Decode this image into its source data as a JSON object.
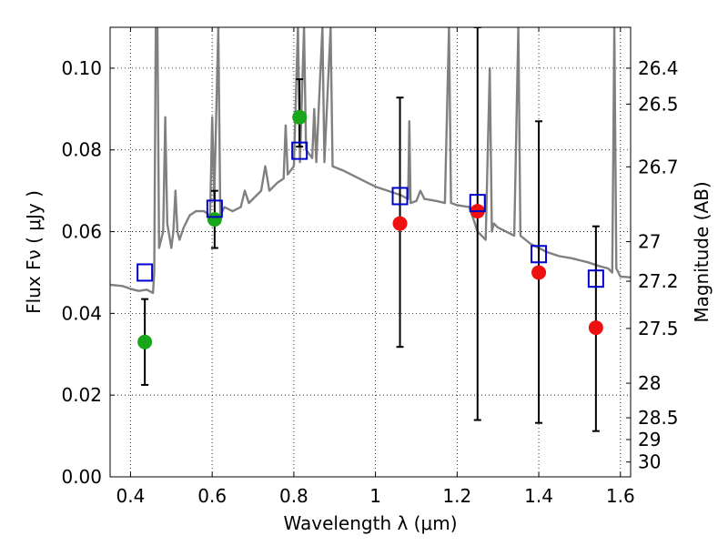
{
  "chart_data": {
    "type": "scatter",
    "title": "",
    "xlabel": "Wavelength  λ (μm)",
    "ylabel": "Flux  Fν  ( μJy )",
    "ylabel_right": "Magnitude (AB)",
    "xlim": [
      0.35,
      1.625
    ],
    "ylim": [
      0.0,
      0.11
    ],
    "grid": true,
    "x_ticks": [
      {
        "value": 0.4,
        "label": "0.4"
      },
      {
        "value": 0.6,
        "label": "0.6"
      },
      {
        "value": 0.8,
        "label": "0.8"
      },
      {
        "value": 1.0,
        "label": "1"
      },
      {
        "value": 1.2,
        "label": "1.2"
      },
      {
        "value": 1.4,
        "label": "1.4"
      },
      {
        "value": 1.6,
        "label": "1.6"
      }
    ],
    "y_ticks": [
      {
        "value": 0.0,
        "label": "0.00"
      },
      {
        "value": 0.02,
        "label": "0.02"
      },
      {
        "value": 0.04,
        "label": "0.04"
      },
      {
        "value": 0.06,
        "label": "0.06"
      },
      {
        "value": 0.08,
        "label": "0.08"
      },
      {
        "value": 0.1,
        "label": "0.10"
      }
    ],
    "mag_ticks": [
      {
        "value": 26.4,
        "label": "26.4"
      },
      {
        "value": 26.5,
        "label": "26.5"
      },
      {
        "value": 26.7,
        "label": "26.7"
      },
      {
        "value": 27.0,
        "label": "27"
      },
      {
        "value": 27.2,
        "label": "27.2"
      },
      {
        "value": 27.5,
        "label": "27.5"
      },
      {
        "value": 28.0,
        "label": "28"
      },
      {
        "value": 28.5,
        "label": "28.5"
      },
      {
        "value": 29.0,
        "label": "29"
      },
      {
        "value": 30.0,
        "label": "30"
      }
    ],
    "colors": {
      "model": "#808080",
      "measured_green": "#1aa61a",
      "measured_red": "#ee1111",
      "model_box": "#0000cc",
      "errorbar": "#000000"
    },
    "observed": [
      {
        "x": 0.435,
        "y": 0.033,
        "err_low": 0.0225,
        "err_high": 0.0435,
        "band": "green"
      },
      {
        "x": 0.606,
        "y": 0.063,
        "err_low": 0.056,
        "err_high": 0.07,
        "band": "green"
      },
      {
        "x": 0.814,
        "y": 0.088,
        "err_low": 0.0808,
        "err_high": 0.0973,
        "band": "green"
      },
      {
        "x": 1.06,
        "y": 0.062,
        "err_low": 0.0318,
        "err_high": 0.0928,
        "band": "red"
      },
      {
        "x": 1.25,
        "y": 0.065,
        "err_low": 0.0139,
        "err_high": 0.11,
        "band": "red"
      },
      {
        "x": 1.4,
        "y": 0.05,
        "err_low": 0.0132,
        "err_high": 0.087,
        "band": "red"
      },
      {
        "x": 1.54,
        "y": 0.0365,
        "err_low": 0.0112,
        "err_high": 0.0613,
        "band": "red"
      }
    ],
    "model_photometry": [
      {
        "x": 0.435,
        "y": 0.05
      },
      {
        "x": 0.606,
        "y": 0.0656
      },
      {
        "x": 0.814,
        "y": 0.0798
      },
      {
        "x": 1.06,
        "y": 0.0687
      },
      {
        "x": 1.25,
        "y": 0.067
      },
      {
        "x": 1.4,
        "y": 0.0545
      },
      {
        "x": 1.54,
        "y": 0.0485
      }
    ],
    "model_spectrum": [
      [
        0.35,
        0.047
      ],
      [
        0.38,
        0.0467
      ],
      [
        0.4,
        0.046
      ],
      [
        0.42,
        0.0455
      ],
      [
        0.44,
        0.0458
      ],
      [
        0.455,
        0.045
      ],
      [
        0.458,
        0.05
      ],
      [
        0.462,
        0.11
      ],
      [
        0.466,
        0.11
      ],
      [
        0.47,
        0.056
      ],
      [
        0.48,
        0.06
      ],
      [
        0.485,
        0.088
      ],
      [
        0.49,
        0.062
      ],
      [
        0.5,
        0.056
      ],
      [
        0.505,
        0.06
      ],
      [
        0.51,
        0.07
      ],
      [
        0.515,
        0.06
      ],
      [
        0.52,
        0.058
      ],
      [
        0.53,
        0.061
      ],
      [
        0.545,
        0.064
      ],
      [
        0.56,
        0.065
      ],
      [
        0.58,
        0.065
      ],
      [
        0.595,
        0.064
      ],
      [
        0.6,
        0.088
      ],
      [
        0.605,
        0.068
      ],
      [
        0.615,
        0.11
      ],
      [
        0.62,
        0.064
      ],
      [
        0.63,
        0.066
      ],
      [
        0.65,
        0.065
      ],
      [
        0.67,
        0.066
      ],
      [
        0.68,
        0.07
      ],
      [
        0.69,
        0.067
      ],
      [
        0.7,
        0.068
      ],
      [
        0.72,
        0.07
      ],
      [
        0.73,
        0.076
      ],
      [
        0.74,
        0.07
      ],
      [
        0.76,
        0.072
      ],
      [
        0.775,
        0.073
      ],
      [
        0.78,
        0.086
      ],
      [
        0.785,
        0.074
      ],
      [
        0.8,
        0.076
      ],
      [
        0.81,
        0.11
      ],
      [
        0.815,
        0.077
      ],
      [
        0.825,
        0.11
      ],
      [
        0.83,
        0.08
      ],
      [
        0.845,
        0.078
      ],
      [
        0.85,
        0.09
      ],
      [
        0.855,
        0.077
      ],
      [
        0.87,
        0.11
      ],
      [
        0.875,
        0.077
      ],
      [
        0.89,
        0.11
      ],
      [
        0.895,
        0.076
      ],
      [
        0.92,
        0.075
      ],
      [
        0.95,
        0.0735
      ],
      [
        0.98,
        0.072
      ],
      [
        1.0,
        0.071
      ],
      [
        1.03,
        0.07
      ],
      [
        1.06,
        0.069
      ],
      [
        1.08,
        0.068
      ],
      [
        1.083,
        0.087
      ],
      [
        1.086,
        0.067
      ],
      [
        1.1,
        0.0675
      ],
      [
        1.11,
        0.07
      ],
      [
        1.12,
        0.068
      ],
      [
        1.15,
        0.0675
      ],
      [
        1.17,
        0.067
      ],
      [
        1.18,
        0.11
      ],
      [
        1.185,
        0.067
      ],
      [
        1.2,
        0.0665
      ],
      [
        1.23,
        0.066
      ],
      [
        1.25,
        0.06
      ],
      [
        1.27,
        0.058
      ],
      [
        1.28,
        0.1
      ],
      [
        1.285,
        0.06
      ],
      [
        1.29,
        0.062
      ],
      [
        1.3,
        0.061
      ],
      [
        1.32,
        0.06
      ],
      [
        1.34,
        0.059
      ],
      [
        1.35,
        0.11
      ],
      [
        1.355,
        0.059
      ],
      [
        1.38,
        0.057
      ],
      [
        1.4,
        0.056
      ],
      [
        1.42,
        0.055
      ],
      [
        1.45,
        0.054
      ],
      [
        1.48,
        0.0535
      ],
      [
        1.5,
        0.053
      ],
      [
        1.52,
        0.0525
      ],
      [
        1.55,
        0.0515
      ],
      [
        1.57,
        0.051
      ],
      [
        1.58,
        0.05
      ],
      [
        1.585,
        0.11
      ],
      [
        1.59,
        0.051
      ],
      [
        1.6,
        0.049
      ],
      [
        1.625,
        0.0488
      ]
    ]
  }
}
